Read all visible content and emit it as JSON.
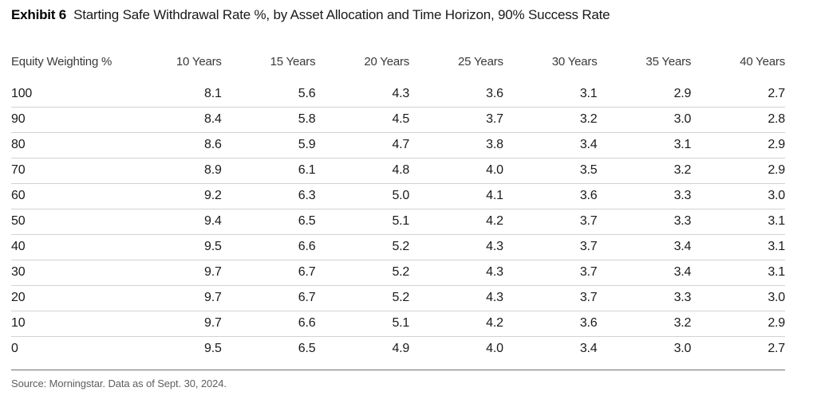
{
  "exhibit": {
    "label": "Exhibit 6",
    "title": "Starting Safe Withdrawal Rate %, by Asset Allocation and Time Horizon, 90% Success Rate"
  },
  "source_note": "Source: Morningstar. Data as of Sept. 30, 2024.",
  "colors": {
    "text_primary": "#1a1a1a",
    "header_text": "#3a3a3a",
    "row_divider": "#d2d2d2",
    "bottom_rule": "#707070",
    "source_text": "#5e5e5e",
    "background": "#ffffff"
  },
  "chart_data": {
    "type": "table",
    "title": "Starting Safe Withdrawal Rate %, by Asset Allocation and Time Horizon, 90% Success Rate",
    "row_header": "Equity Weighting %",
    "column_headers": [
      "10 Years",
      "15 Years",
      "20 Years",
      "25 Years",
      "30 Years",
      "35 Years",
      "40 Years"
    ],
    "equity_weighting": [
      100,
      90,
      80,
      70,
      60,
      50,
      40,
      30,
      20,
      10,
      0
    ],
    "values": [
      [
        8.1,
        5.6,
        4.3,
        3.6,
        3.1,
        2.9,
        2.7
      ],
      [
        8.4,
        5.8,
        4.5,
        3.7,
        3.2,
        3.0,
        2.8
      ],
      [
        8.6,
        5.9,
        4.7,
        3.8,
        3.4,
        3.1,
        2.9
      ],
      [
        8.9,
        6.1,
        4.8,
        4.0,
        3.5,
        3.2,
        2.9
      ],
      [
        9.2,
        6.3,
        5.0,
        4.1,
        3.6,
        3.3,
        3.0
      ],
      [
        9.4,
        6.5,
        5.1,
        4.2,
        3.7,
        3.3,
        3.1
      ],
      [
        9.5,
        6.6,
        5.2,
        4.3,
        3.7,
        3.4,
        3.1
      ],
      [
        9.7,
        6.7,
        5.2,
        4.3,
        3.7,
        3.4,
        3.1
      ],
      [
        9.7,
        6.7,
        5.2,
        4.3,
        3.7,
        3.3,
        3.0
      ],
      [
        9.7,
        6.6,
        5.1,
        4.2,
        3.6,
        3.2,
        2.9
      ],
      [
        9.5,
        6.5,
        4.9,
        4.0,
        3.4,
        3.0,
        2.7
      ]
    ],
    "value_decimals": 1,
    "grid": "horizontal-row-dividers",
    "units": "percent"
  }
}
